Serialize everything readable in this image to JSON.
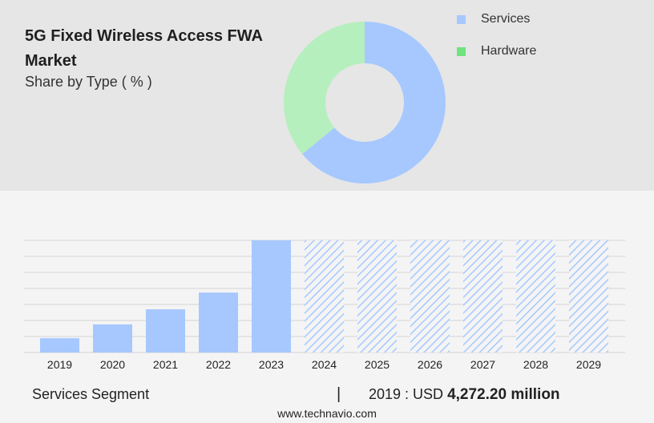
{
  "header": {
    "title": "5G Fixed Wireless Access FWA Market",
    "subtitle": "Share by Type ( % )"
  },
  "colors": {
    "services": "#a6c8ff",
    "hardware": "#b5efbd",
    "hardware_legend": "#6ee37e",
    "forecast_hatch": "#a6c8ff"
  },
  "chart_data": [
    {
      "type": "pie",
      "style": "donut",
      "title": "Share by Type ( % )",
      "labels": [
        "Services",
        "Hardware"
      ],
      "values": [
        64,
        36
      ],
      "legend_position": "right"
    },
    {
      "type": "bar",
      "categories": [
        "2019",
        "2020",
        "2021",
        "2022",
        "2023",
        "2024",
        "2025",
        "2026",
        "2027",
        "2028",
        "2029"
      ],
      "values": [
        4272.2,
        8400,
        12900,
        17900,
        33500,
        33500,
        33500,
        33500,
        33500,
        33500,
        33500
      ],
      "forecast_from": "2024",
      "ylim": [
        0,
        33500
      ],
      "grid": true,
      "title": "",
      "xlabel": "",
      "ylabel": ""
    }
  ],
  "footer": {
    "segment_label": "Services Segment",
    "separator": "|",
    "year_prefix": "2019 : USD",
    "value": "4,272.20 million",
    "source": "www.technavio.com"
  }
}
